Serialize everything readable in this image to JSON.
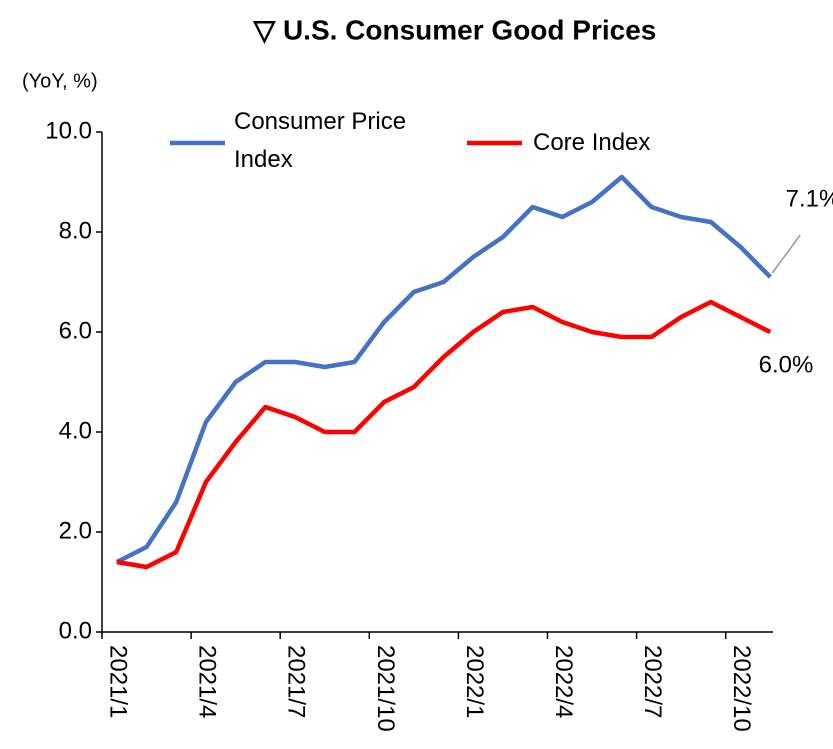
{
  "chart_data": {
    "type": "line",
    "title": "▽ U.S. Consumer Good Prices",
    "y_axis_label": "(YoY, %)",
    "categories": [
      "2021/1",
      null,
      null,
      "2021/4",
      null,
      null,
      "2021/7",
      null,
      null,
      "2021/10",
      null,
      null,
      "2022/1",
      null,
      null,
      "2022/4",
      null,
      null,
      "2022/7",
      null,
      null,
      "2022/10",
      null
    ],
    "series": [
      {
        "name": "Consumer Price Index",
        "color": "#4472c4",
        "values": [
          1.4,
          1.7,
          2.6,
          4.2,
          5.0,
          5.4,
          5.4,
          5.3,
          5.4,
          6.2,
          6.8,
          7.0,
          7.5,
          7.9,
          8.5,
          8.3,
          8.6,
          9.1,
          8.5,
          8.3,
          8.2,
          7.7,
          7.1
        ],
        "value_labels": [
          null,
          null,
          null,
          null,
          null,
          null,
          null,
          null,
          null,
          null,
          null,
          null,
          null,
          null,
          null,
          null,
          null,
          null,
          null,
          null,
          null,
          null,
          "7.1%"
        ]
      },
      {
        "name": "Core Index",
        "color": "#ff0000",
        "values": [
          1.4,
          1.3,
          1.6,
          3.0,
          3.8,
          4.5,
          4.3,
          4.0,
          4.0,
          4.6,
          4.9,
          5.5,
          6.0,
          6.4,
          6.5,
          6.2,
          6.0,
          5.9,
          5.9,
          6.3,
          6.6,
          6.3,
          6.0
        ],
        "value_labels": [
          null,
          null,
          null,
          null,
          null,
          null,
          null,
          null,
          null,
          null,
          null,
          null,
          null,
          null,
          null,
          null,
          null,
          null,
          null,
          null,
          null,
          null,
          "6.0%"
        ]
      }
    ],
    "ylim": [
      0,
      10
    ],
    "yticks": [
      {
        "value": 0,
        "label": "0.0"
      },
      {
        "value": 2,
        "label": "2.0"
      },
      {
        "value": 4,
        "label": "4.0"
      },
      {
        "value": 6,
        "label": "6.0"
      },
      {
        "value": 8,
        "label": "8.0"
      },
      {
        "value": 10,
        "label": "10.0"
      }
    ],
    "grid": false
  }
}
